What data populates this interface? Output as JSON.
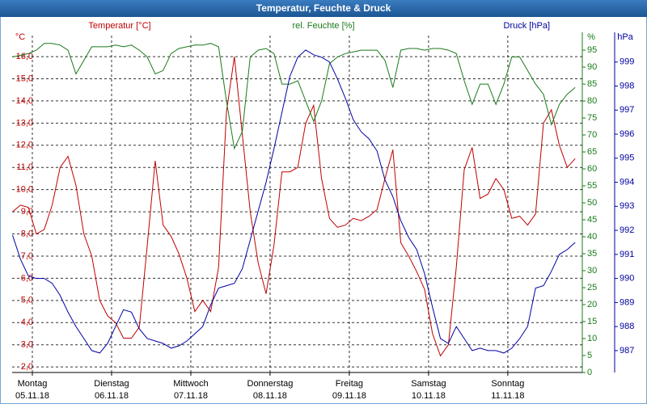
{
  "chart_data": {
    "type": "line",
    "title": "Temperatur, Feuchte & Druck",
    "ylabel": "Temperatur [°C]",
    "yunit": "°C",
    "y2label": "rel. Feuchte [%]",
    "y2unit": "%",
    "y3label": "Druck [hPa]",
    "y3unit": "hPa",
    "xlim": [
      -0.255,
      6.94
    ],
    "xticks": [
      {
        "value": 0,
        "label": "Montag"
      },
      {
        "value": 1,
        "label": "Dienstag"
      },
      {
        "value": 2,
        "label": "Mittwoch"
      },
      {
        "value": 3,
        "label": "Donnerstag"
      },
      {
        "value": 4,
        "label": "Freitag"
      },
      {
        "value": 5,
        "label": "Samstag"
      },
      {
        "value": 6,
        "label": "Sonntag"
      }
    ],
    "xtick_dates": [
      "05.11.18",
      "06.11.18",
      "07.11.18",
      "08.11.18",
      "09.11.18",
      "10.11.18",
      "11.11.18"
    ],
    "ylim": [
      1.75,
      16.95
    ],
    "yticks": [
      {
        "value": 2,
        "label": "2,0"
      },
      {
        "value": 3,
        "label": "3,0"
      },
      {
        "value": 4,
        "label": "4,0"
      },
      {
        "value": 5,
        "label": "5,0"
      },
      {
        "value": 6,
        "label": "6,0"
      },
      {
        "value": 7,
        "label": "7,0"
      },
      {
        "value": 8,
        "label": "8,0"
      },
      {
        "value": 9,
        "label": "9,0"
      },
      {
        "value": 10,
        "label": "10,0"
      },
      {
        "value": 11,
        "label": "11,0"
      },
      {
        "value": 12,
        "label": "12,0"
      },
      {
        "value": 13,
        "label": "13,0"
      },
      {
        "value": 14,
        "label": "14,0"
      },
      {
        "value": 15,
        "label": "15,0"
      },
      {
        "value": 16,
        "label": "16,0"
      }
    ],
    "y2lim": [
      0,
      99.3
    ],
    "y2ticks": [
      0,
      5,
      10,
      15,
      20,
      25,
      30,
      35,
      40,
      45,
      50,
      55,
      60,
      65,
      70,
      75,
      80,
      85,
      90,
      95
    ],
    "y3lim": [
      986.09,
      1000.1
    ],
    "y3ticks": [
      987,
      988,
      989,
      990,
      991,
      992,
      993,
      994,
      995,
      996,
      997,
      998,
      999
    ],
    "grid": true,
    "x": [
      -0.25,
      -0.15,
      -0.05,
      0.05,
      0.15,
      0.25,
      0.35,
      0.45,
      0.55,
      0.65,
      0.75,
      0.85,
      0.95,
      1.05,
      1.15,
      1.25,
      1.35,
      1.45,
      1.55,
      1.65,
      1.75,
      1.85,
      1.95,
      2.05,
      2.15,
      2.25,
      2.35,
      2.45,
      2.55,
      2.65,
      2.75,
      2.85,
      2.95,
      3.05,
      3.15,
      3.25,
      3.35,
      3.45,
      3.55,
      3.65,
      3.75,
      3.85,
      3.95,
      4.05,
      4.15,
      4.25,
      4.35,
      4.45,
      4.55,
      4.65,
      4.75,
      4.85,
      4.95,
      5.05,
      5.15,
      5.25,
      5.35,
      5.45,
      5.55,
      5.65,
      5.75,
      5.85,
      5.95,
      6.05,
      6.15,
      6.25,
      6.35,
      6.45,
      6.55,
      6.65,
      6.75,
      6.85
    ],
    "series": [
      {
        "name": "Temperatur [°C]",
        "color": "#c00000",
        "axis": "y",
        "values": [
          9.0,
          9.3,
          9.2,
          8.0,
          8.2,
          9.3,
          11.0,
          11.5,
          10.2,
          8.0,
          7.0,
          5.0,
          4.3,
          4.0,
          3.3,
          3.3,
          3.8,
          7.5,
          11.3,
          8.4,
          7.9,
          7.1,
          6.0,
          4.5,
          5.0,
          4.5,
          6.5,
          13.5,
          16.0,
          12.5,
          9.0,
          6.7,
          5.3,
          7.5,
          10.8,
          10.8,
          11.0,
          13.0,
          13.8,
          10.5,
          8.7,
          8.3,
          8.4,
          8.7,
          8.6,
          8.8,
          9.1,
          10.5,
          11.8,
          7.6,
          7.0,
          6.3,
          5.5,
          3.5,
          2.5,
          3.0,
          6.5,
          10.9,
          11.9,
          9.6,
          9.8,
          10.5,
          10.0,
          8.7,
          8.8,
          8.4,
          8.9,
          13.0,
          13.6,
          12.0,
          11.0,
          11.4
        ]
      },
      {
        "name": "rel. Feuchte [%]",
        "color": "#1a7a1a",
        "axis": "y2",
        "values": [
          93,
          93.5,
          94,
          95,
          97,
          97,
          96.5,
          95,
          88,
          92,
          96,
          96,
          96,
          96.5,
          96,
          96.5,
          95,
          93,
          88,
          89,
          94,
          95.5,
          96,
          96.5,
          96.5,
          97,
          96,
          80,
          66,
          71,
          93,
          95,
          95.5,
          94,
          85,
          85,
          86,
          80,
          74,
          80,
          91,
          93,
          94,
          94.5,
          95,
          95,
          95,
          92,
          84,
          95,
          95.5,
          95.5,
          95,
          95.5,
          95.5,
          95,
          94,
          86,
          79,
          85,
          85,
          79,
          85,
          93,
          93,
          89,
          85,
          82,
          73,
          79,
          82,
          84
        ]
      },
      {
        "name": "Druck [hPa]",
        "color": "#0000a0",
        "axis": "y3",
        "values": [
          991.8,
          990.8,
          990.1,
          990.0,
          990.0,
          989.8,
          989.3,
          988.6,
          988.0,
          987.5,
          987.0,
          986.9,
          987.3,
          988.0,
          988.7,
          988.6,
          987.9,
          987.5,
          987.4,
          987.3,
          987.1,
          987.2,
          987.4,
          987.7,
          988.0,
          988.9,
          989.6,
          989.7,
          989.8,
          990.4,
          991.6,
          992.8,
          994.0,
          995.4,
          996.9,
          998.4,
          999.2,
          999.5,
          999.3,
          999.2,
          999.0,
          998.3,
          997.5,
          996.6,
          996.1,
          995.8,
          995.3,
          994.1,
          993.4,
          992.4,
          991.7,
          991.2,
          990.2,
          988.8,
          987.5,
          987.3,
          988.0,
          987.5,
          987.0,
          987.1,
          987.0,
          987.0,
          986.9,
          987.1,
          987.5,
          988.0,
          989.6,
          989.7,
          990.3,
          991.0,
          991.2,
          991.5
        ]
      }
    ]
  }
}
